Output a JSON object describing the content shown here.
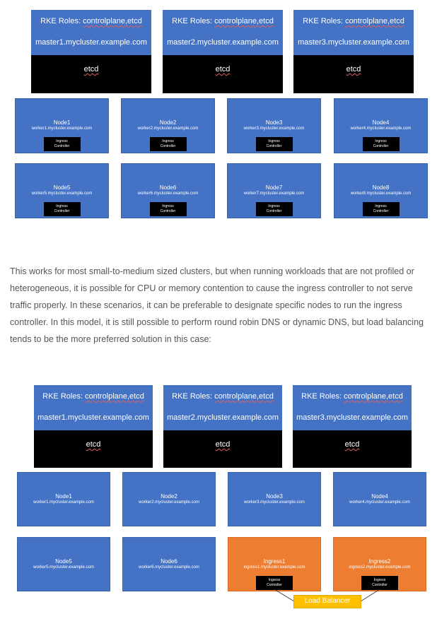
{
  "diagram1": {
    "masters": [
      {
        "roles_prefix": "RKE Roles: ",
        "roles": "controlplane,etcd",
        "host": "master1.mycluster.example.com",
        "etcd": "etcd"
      },
      {
        "roles_prefix": "RKE Roles: ",
        "roles": "controlplane,etcd",
        "host": "master2.mycluster.example.com",
        "etcd": "etcd"
      },
      {
        "roles_prefix": "RKE Roles: ",
        "roles": "controlplane,etcd",
        "host": "master3.mycluster.example.com",
        "etcd": "etcd"
      }
    ],
    "workers": [
      {
        "name": "Node1",
        "host": "worker1.mycluster.example.com",
        "ingress": "Ingress\nController"
      },
      {
        "name": "Node2",
        "host": "worker2.mycluster.example.com",
        "ingress": "Ingress\nController"
      },
      {
        "name": "Node3",
        "host": "worker3.mycluster.example.com",
        "ingress": "Ingress\nController"
      },
      {
        "name": "Node4",
        "host": "worker4.mycluster.example.com",
        "ingress": "Ingress\nController"
      },
      {
        "name": "Node5",
        "host": "worker5.mycluster.example.com",
        "ingress": "Ingress\nController"
      },
      {
        "name": "Node6",
        "host": "worker6.mycluster.example.com",
        "ingress": "Ingress\nController"
      },
      {
        "name": "Node7",
        "host": "worker7.mycluster.example.com",
        "ingress": "Ingress\nController"
      },
      {
        "name": "Node8",
        "host": "worker8.mycluster.example.com",
        "ingress": "Ingress\nController"
      }
    ]
  },
  "paragraph": "This works for most small-to-medium sized clusters, but when running workloads that are not profiled or heterogeneous, it is possible for CPU or memory contention to cause the ingress controller to not serve traffic properly. In these scenarios, it can be preferable to designate specific nodes to run the ingress controller. In this model, it is still possible to perform round robin DNS or dynamic DNS, but load balancing tends to be the more preferred solution in this case:",
  "diagram2": {
    "masters": [
      {
        "roles_prefix": "RKE Roles: ",
        "roles": "controlplane,etcd",
        "host": "master1.mycluster.example.com",
        "etcd": "etcd"
      },
      {
        "roles_prefix": "RKE Roles: ",
        "roles": "controlplane,etcd",
        "host": "master2.mycluster.example.com",
        "etcd": "etcd"
      },
      {
        "roles_prefix": "RKE Roles: ",
        "roles": "controlplane,etcd",
        "host": "master3.mycluster.example.com",
        "etcd": "etcd"
      }
    ],
    "workers": [
      {
        "name": "Node1",
        "host": "worker1.mycluster.example.com"
      },
      {
        "name": "Node2",
        "host": "worker2.mycluster.example.com"
      },
      {
        "name": "Node3",
        "host": "worker3.mycluster.example.com"
      },
      {
        "name": "Node4",
        "host": "worker4.mycluster.example.com"
      },
      {
        "name": "Node5",
        "host": "worker5.mycluster.example.com"
      },
      {
        "name": "Node6",
        "host": "worker6.mycluster.example.com"
      },
      {
        "name": "Ingress1",
        "host": "ingress1.mycluster.example.com",
        "ingress": "Ingress\nController",
        "color": "#ed7d31"
      },
      {
        "name": "Ingress2",
        "host": "ingress2.mycluster.example.com",
        "ingress": "Ingress\nController",
        "color": "#ed7d31"
      }
    ],
    "load_balancer": "Load Balancer"
  },
  "colors": {
    "node_blue": "#4472c4",
    "etcd_black": "#000000",
    "ingress_orange": "#ed7d31",
    "lb_yellow": "#ffc000"
  }
}
